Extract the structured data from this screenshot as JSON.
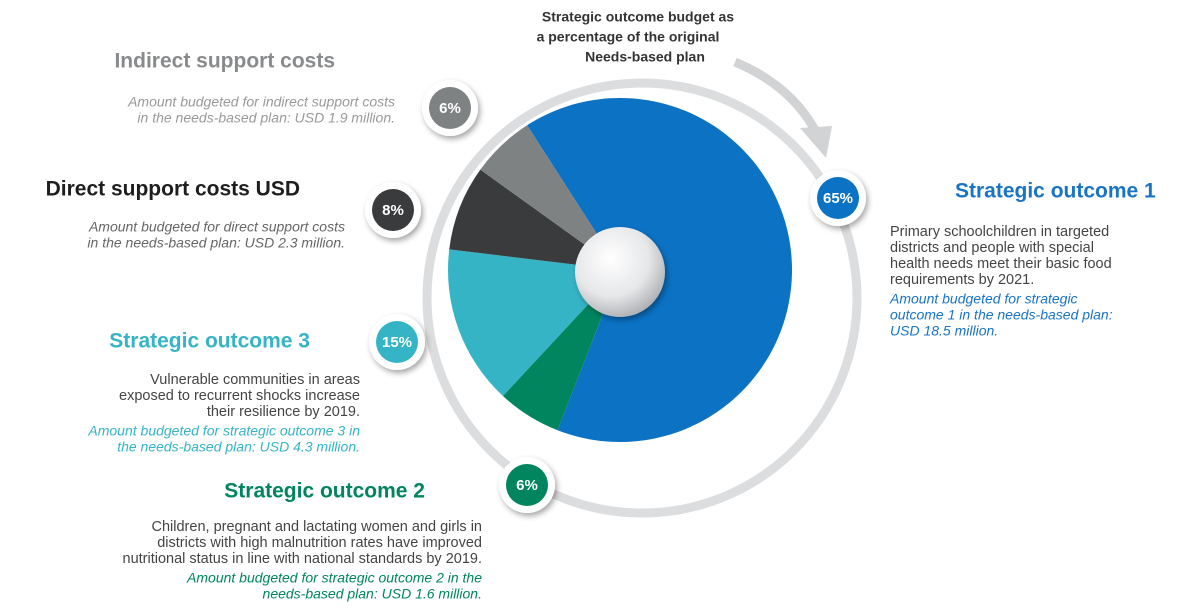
{
  "chart_data": {
    "type": "pie",
    "title": [
      "Strategic outcome budget  as",
      "a percentage of the original",
      "Needs-based plan"
    ],
    "categories": [
      "Strategic outcome 1",
      "Strategic outcome 2",
      "Strategic outcome 3",
      "Direct support costs USD",
      "Indirect support costs"
    ],
    "values": [
      65,
      6,
      15,
      8,
      6
    ],
    "value_labels": [
      "65%",
      "6%",
      "15%",
      "8%",
      "6%"
    ],
    "colors": [
      "#0b72c4",
      "#00855f",
      "#35b4c6",
      "#3a3b3d",
      "#7f8283"
    ],
    "details": [
      {
        "description": [
          "Primary schoolchildren in targeted",
          "districts and people with special",
          "health needs meet their basic food",
          "requirements by 2021."
        ],
        "amount": [
          "Amount budgeted for strategic",
          "outcome 1 in the needs-based plan:",
          "USD 18.5 million."
        ]
      },
      {
        "description": [
          "Children, pregnant and lactating women and girls in",
          "districts with high malnutrition rates have improved",
          "nutritional status in line with national standards by 2019."
        ],
        "amount": [
          "Amount budgeted for strategic outcome 2 in the",
          "needs-based plan: USD 1.6 million."
        ]
      },
      {
        "description": [
          "Vulnerable communities in areas",
          "exposed to recurrent shocks increase",
          "their resilience by 2019."
        ],
        "amount": [
          "Amount budgeted for strategic outcome 3 in",
          "the needs-based plan: USD 4.3 million."
        ]
      },
      {
        "amount": [
          "Amount budgeted for direct support costs",
          "in the needs-based plan: USD 2.3 million."
        ]
      },
      {
        "amount": [
          "Amount budgeted for indirect support costs",
          "in the needs-based plan: USD 1.9 million."
        ]
      }
    ]
  }
}
